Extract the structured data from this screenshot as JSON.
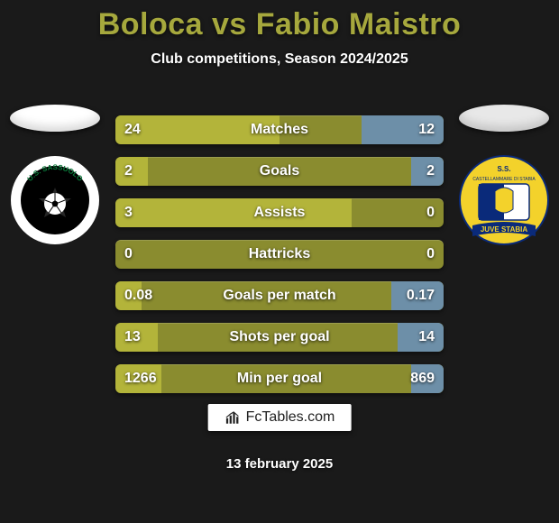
{
  "title_left": "Boloca",
  "title_vs": "vs",
  "title_right": "Fabio Maistro",
  "subtitle": "Club competitions, Season 2024/2025",
  "attribution": "FcTables.com",
  "date": "13 february 2025",
  "colors": {
    "background": "#1a1a1a",
    "title": "#a6a83d",
    "bar_base": "#8a8c2f",
    "bar_left_fill": "#b3b43a",
    "bar_right_fill": "#6d8fa8",
    "text": "#ffffff"
  },
  "natl_left": {
    "bg": "#ffffff"
  },
  "natl_right": {
    "bg": "#e8e8e8"
  },
  "crest_left": {
    "ring": "#ffffff",
    "inner": "#000000",
    "text": "U.S. SASSUOLO",
    "text_color": "#0a7a3a"
  },
  "crest_right": {
    "bg": "#f3d22b",
    "banner": "#0a2a7a",
    "banner_text": "JUVE STABIA",
    "subtext": "S.S."
  },
  "rows": [
    {
      "label": "Matches",
      "left": "24",
      "right": "12",
      "left_pct": 50,
      "right_pct": 25
    },
    {
      "label": "Goals",
      "left": "2",
      "right": "2",
      "left_pct": 10,
      "right_pct": 10
    },
    {
      "label": "Assists",
      "left": "3",
      "right": "0",
      "left_pct": 72,
      "right_pct": 0
    },
    {
      "label": "Hattricks",
      "left": "0",
      "right": "0",
      "left_pct": 0,
      "right_pct": 0
    },
    {
      "label": "Goals per match",
      "left": "0.08",
      "right": "0.17",
      "left_pct": 8,
      "right_pct": 16
    },
    {
      "label": "Shots per goal",
      "left": "13",
      "right": "14",
      "left_pct": 13,
      "right_pct": 14
    },
    {
      "label": "Min per goal",
      "left": "1266",
      "right": "869",
      "left_pct": 14,
      "right_pct": 10
    }
  ]
}
